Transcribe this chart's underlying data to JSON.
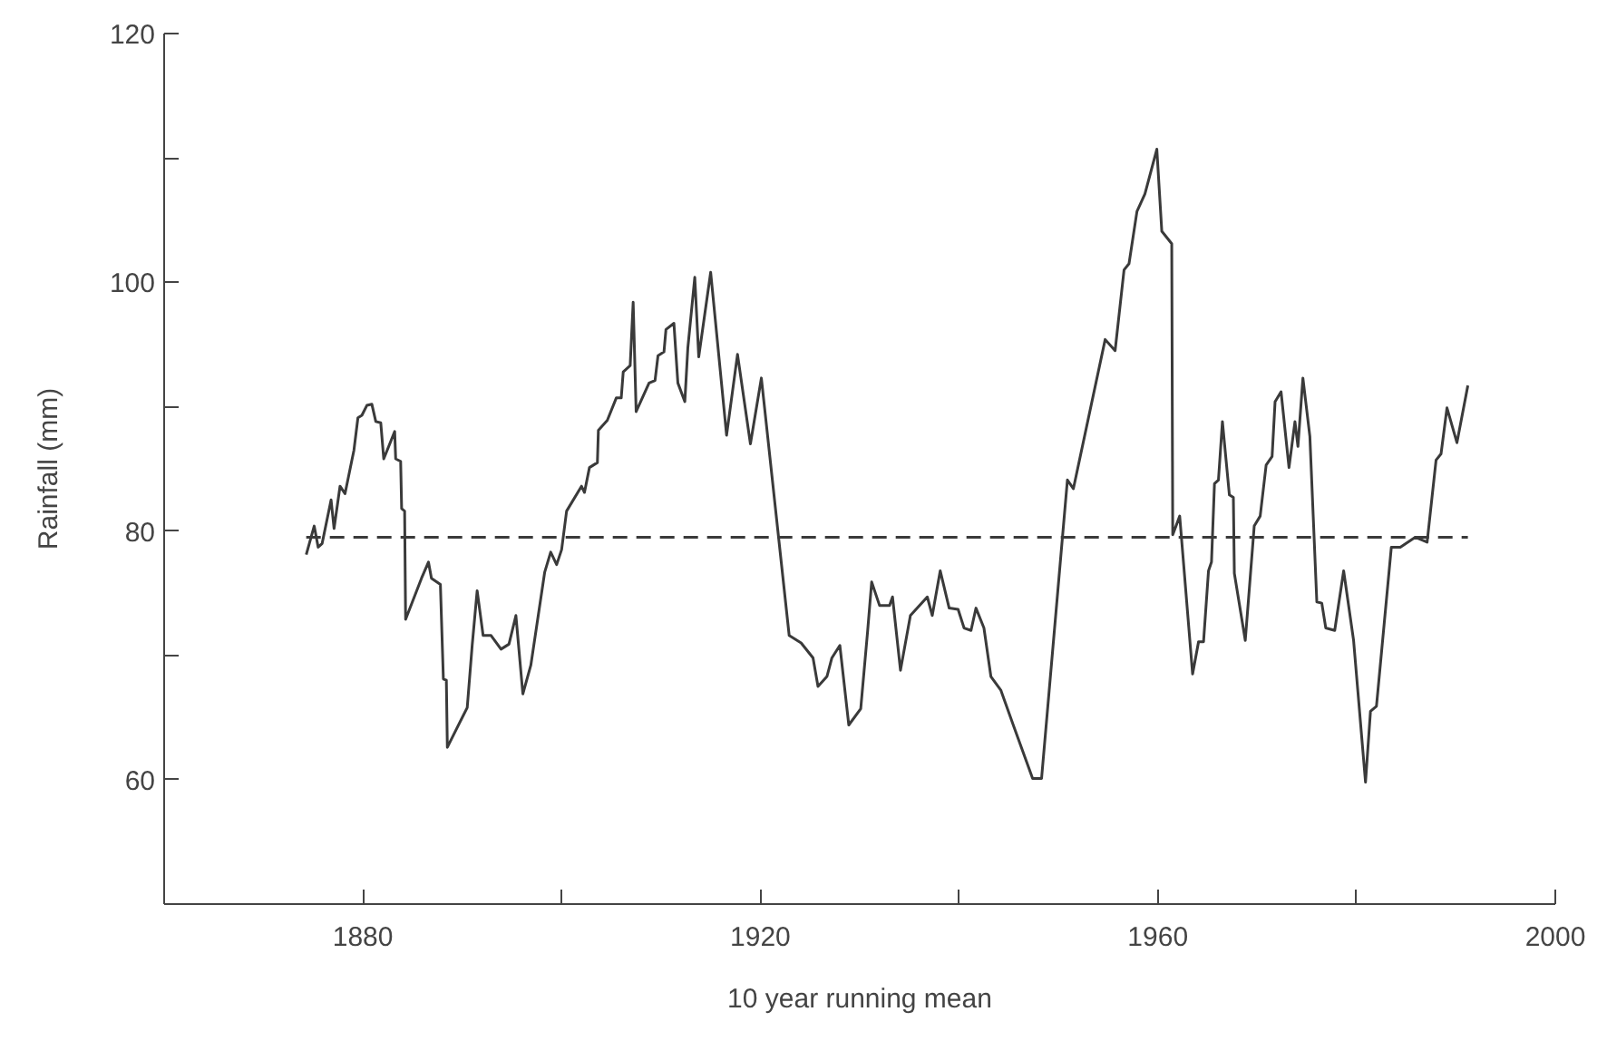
{
  "chart_data": {
    "type": "line",
    "xlabel": "10 year running mean",
    "ylabel": "Rainfall (mm)",
    "x": [
      1874.3,
      1875.1,
      1875.5,
      1875.9,
      1876.8,
      1877.1,
      1877.7,
      1878.2,
      1879.1,
      1879.5,
      1879.9,
      1880.4,
      1880.9,
      1881.3,
      1881.8,
      1882.1,
      1883.2,
      1883.3,
      1883.8,
      1883.9,
      1884.2,
      1884.3,
      1885.9,
      1886.6,
      1886.9,
      1887.8,
      1888.1,
      1888.4,
      1888.5,
      1890.5,
      1891,
      1891.5,
      1892.1,
      1892.9,
      1893.9,
      1894.7,
      1895.4,
      1896.1,
      1896.9,
      1898.3,
      1898.9,
      1899.5,
      1900,
      1900.5,
      1902,
      1902.3,
      1902.8,
      1903.6,
      1903.7,
      1904.6,
      1905.5,
      1906,
      1906.2,
      1906.9,
      1907.2,
      1907.5,
      1908.8,
      1909.4,
      1909.7,
      1910.3,
      1910.5,
      1911.3,
      1911.7,
      1912.4,
      1912.7,
      1913.4,
      1913.8,
      1915,
      1916.6,
      1917.7,
      1919,
      1920.1,
      1922.9,
      1924.1,
      1925.3,
      1925.8,
      1926.7,
      1927.2,
      1928,
      1928.9,
      1930.1,
      1930.8,
      1931.2,
      1932,
      1933,
      1933.3,
      1934.1,
      1935.1,
      1936.8,
      1937.3,
      1938.1,
      1939,
      1939.9,
      1940.5,
      1941.2,
      1941.7,
      1942.5,
      1943.2,
      1944.2,
      1945.5,
      1947.4,
      1948.3,
      1950.9,
      1951.5,
      1954.7,
      1955.7,
      1956.6,
      1957.1,
      1957.9,
      1958.7,
      1959.9,
      1960.4,
      1961.4,
      1961.5,
      1962.2,
      1963.5,
      1964.1,
      1964.6,
      1965.1,
      1965.4,
      1965.7,
      1966.1,
      1966.5,
      1967.2,
      1967.6,
      1967.7,
      1968.8,
      1969.3,
      1969.7,
      1970.3,
      1970.9,
      1971.5,
      1971.8,
      1972.4,
      1973.2,
      1973.8,
      1974.1,
      1974.6,
      1975.3,
      1976,
      1976.5,
      1976.9,
      1977.8,
      1978.7,
      1979.7,
      1980.9,
      1981.4,
      1982,
      1983.5,
      1984.4,
      1985.9,
      1987.1,
      1988,
      1988.5,
      1989.1,
      1990.1,
      1991.2
    ],
    "series": [
      {
        "color": "#3a3a3a",
        "values": [
          78.1,
          80.4,
          78.7,
          79,
          82.5,
          80.2,
          83.6,
          83,
          86.5,
          89.1,
          89.3,
          90.1,
          90.2,
          88.8,
          88.7,
          85.8,
          88,
          85.8,
          85.6,
          81.8,
          81.6,
          72.9,
          76.2,
          77.5,
          76.2,
          75.7,
          68.1,
          68,
          62.6,
          65.8,
          70.8,
          75.2,
          71.6,
          71.6,
          70.5,
          70.9,
          73.2,
          66.9,
          69.2,
          76.7,
          78.3,
          77.3,
          78.5,
          81.6,
          83.6,
          83.1,
          85.1,
          85.5,
          88.1,
          88.9,
          90.7,
          90.7,
          92.8,
          93.3,
          98.4,
          89.6,
          91.9,
          92.1,
          94.1,
          94.4,
          96.2,
          96.7,
          91.9,
          90.4,
          94.7,
          100.4,
          94,
          100.8,
          87.7,
          94.2,
          87,
          92.3,
          71.6,
          71,
          69.8,
          67.5,
          68.3,
          69.8,
          70.8,
          64.4,
          65.7,
          72,
          75.9,
          74,
          74,
          74.7,
          68.8,
          73.2,
          74.7,
          73.2,
          76.8,
          73.8,
          73.7,
          72.2,
          72,
          73.8,
          72.2,
          68.3,
          67.2,
          64.3,
          60.1,
          60.1,
          84.1,
          83.4,
          95.4,
          94.5,
          101,
          101.5,
          105.7,
          107.1,
          110.7,
          104.1,
          103.1,
          79.7,
          81.2,
          68.5,
          71.1,
          71.1,
          76.8,
          77.5,
          83.8,
          84.1,
          88.8,
          82.9,
          82.7,
          76.6,
          71.2,
          76.3,
          80.4,
          81.2,
          85.3,
          86,
          90.4,
          91.2,
          85.1,
          88.8,
          86.8,
          92.3,
          87.6,
          74.3,
          74.2,
          72.2,
          72,
          76.8,
          71.2,
          59.8,
          65.5,
          65.9,
          78.7,
          78.7,
          79.5,
          79.1,
          85.7,
          86.2,
          89.9,
          87.1,
          91.7
        ]
      }
    ],
    "ref_lines": [
      {
        "axis": "y",
        "value": 79.5,
        "line_style": "dashed",
        "color": "#3a3a3a"
      }
    ],
    "xlim": [
      1860,
      2000
    ],
    "xticks": [
      1880,
      {
        "value": 1900,
        "label": null
      },
      1920,
      {
        "value": 1940,
        "label": null
      },
      1960,
      {
        "value": 1980,
        "label": null
      },
      2000
    ],
    "ylim": [
      50,
      120
    ],
    "yticks": [
      {
        "value": 50,
        "label": null
      },
      60,
      {
        "value": 70,
        "label": null
      },
      80,
      {
        "value": 90,
        "label": null
      },
      100,
      {
        "value": 110,
        "label": null
      },
      120
    ],
    "grid": false,
    "line_style": "solid",
    "marker": "none"
  }
}
